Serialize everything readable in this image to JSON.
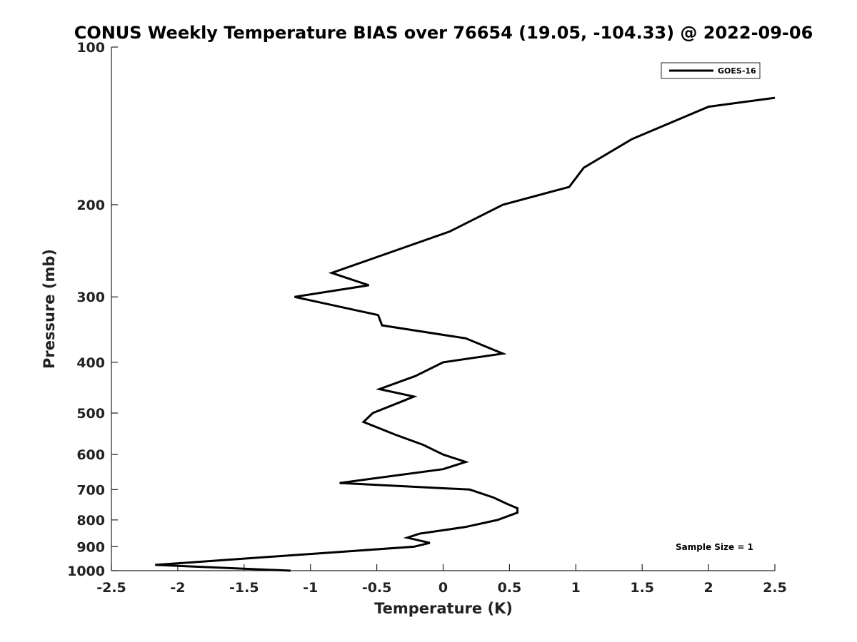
{
  "chart_data": {
    "type": "line",
    "title": "CONUS Weekly Temperature BIAS over 76654 (19.05, -104.33) @ 2022-09-06",
    "xlabel": "Temperature (K)",
    "ylabel": "Pressure (mb)",
    "xlim": [
      -2.5,
      2.5
    ],
    "ylim": [
      100,
      1000
    ],
    "yscale": "log",
    "y_reversed": true,
    "x_ticks": [
      -2.5,
      -2,
      -1.5,
      -1,
      -0.5,
      0,
      0.5,
      1,
      1.5,
      2,
      2.5
    ],
    "x_tick_labels": [
      "-2.5",
      "-2",
      "-1.5",
      "-1",
      "-0.5",
      "0",
      "0.5",
      "1",
      "1.5",
      "2",
      "2.5"
    ],
    "y_ticks": [
      100,
      200,
      300,
      400,
      500,
      600,
      700,
      800,
      900,
      1000
    ],
    "y_tick_labels": [
      "100",
      "200",
      "300",
      "400",
      "500",
      "600",
      "700",
      "800",
      "900",
      "1000"
    ],
    "grid": false,
    "legend_position": "top-right",
    "annotation": "Sample Size = 1",
    "series": [
      {
        "name": "GOES-16",
        "color": "#000000",
        "points": [
          {
            "x": 2.5,
            "y": 125
          },
          {
            "x": 2.0,
            "y": 130
          },
          {
            "x": 1.42,
            "y": 150
          },
          {
            "x": 1.06,
            "y": 170
          },
          {
            "x": 0.95,
            "y": 185
          },
          {
            "x": 0.45,
            "y": 200
          },
          {
            "x": 0.05,
            "y": 225
          },
          {
            "x": -0.84,
            "y": 270
          },
          {
            "x": -0.56,
            "y": 285
          },
          {
            "x": -1.12,
            "y": 300
          },
          {
            "x": -0.49,
            "y": 325
          },
          {
            "x": -0.46,
            "y": 340
          },
          {
            "x": 0.17,
            "y": 360
          },
          {
            "x": 0.45,
            "y": 385
          },
          {
            "x": 0.0,
            "y": 400
          },
          {
            "x": -0.21,
            "y": 425
          },
          {
            "x": -0.48,
            "y": 450
          },
          {
            "x": -0.22,
            "y": 465
          },
          {
            "x": -0.31,
            "y": 475
          },
          {
            "x": -0.53,
            "y": 500
          },
          {
            "x": -0.6,
            "y": 520
          },
          {
            "x": -0.36,
            "y": 550
          },
          {
            "x": -0.15,
            "y": 575
          },
          {
            "x": 0.0,
            "y": 600
          },
          {
            "x": 0.17,
            "y": 620
          },
          {
            "x": 0.0,
            "y": 640
          },
          {
            "x": -0.78,
            "y": 680
          },
          {
            "x": 0.2,
            "y": 700
          },
          {
            "x": 0.38,
            "y": 725
          },
          {
            "x": 0.48,
            "y": 745
          },
          {
            "x": 0.56,
            "y": 760
          },
          {
            "x": 0.56,
            "y": 775
          },
          {
            "x": 0.41,
            "y": 800
          },
          {
            "x": 0.17,
            "y": 825
          },
          {
            "x": -0.18,
            "y": 850
          },
          {
            "x": -0.27,
            "y": 865
          },
          {
            "x": -0.1,
            "y": 885
          },
          {
            "x": -0.22,
            "y": 900
          },
          {
            "x": -2.17,
            "y": 975
          },
          {
            "x": -1.15,
            "y": 1000
          }
        ]
      }
    ]
  }
}
